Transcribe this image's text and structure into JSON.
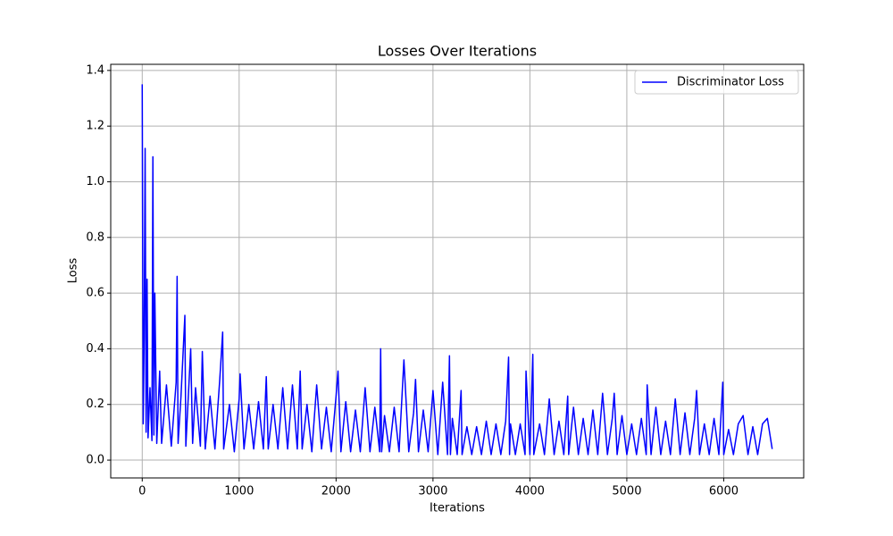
{
  "chart_data": {
    "type": "line",
    "title": "Losses Over Iterations",
    "xlabel": "Iterations",
    "ylabel": "Loss",
    "x": [
      0,
      10,
      20,
      30,
      40,
      50,
      60,
      80,
      100,
      110,
      120,
      130,
      150,
      180,
      200,
      250,
      300,
      350,
      360,
      370,
      400,
      440,
      450,
      500,
      520,
      550,
      600,
      620,
      650,
      700,
      750,
      800,
      830,
      840,
      900,
      950,
      1000,
      1010,
      1050,
      1100,
      1150,
      1200,
      1250,
      1280,
      1300,
      1350,
      1400,
      1450,
      1500,
      1550,
      1600,
      1630,
      1650,
      1700,
      1750,
      1800,
      1850,
      1900,
      1950,
      2000,
      2020,
      2050,
      2100,
      2150,
      2200,
      2250,
      2300,
      2350,
      2400,
      2450,
      2460,
      2470,
      2500,
      2550,
      2600,
      2650,
      2700,
      2750,
      2800,
      2820,
      2850,
      2900,
      2950,
      3000,
      3050,
      3100,
      3150,
      3170,
      3180,
      3200,
      3250,
      3290,
      3300,
      3350,
      3400,
      3450,
      3500,
      3550,
      3600,
      3650,
      3700,
      3750,
      3780,
      3790,
      3800,
      3850,
      3900,
      3950,
      3960,
      4000,
      4030,
      4040,
      4100,
      4150,
      4200,
      4250,
      4300,
      4350,
      4390,
      4400,
      4450,
      4500,
      4550,
      4600,
      4650,
      4700,
      4750,
      4800,
      4850,
      4870,
      4900,
      4950,
      5000,
      5050,
      5100,
      5150,
      5200,
      5210,
      5250,
      5300,
      5350,
      5400,
      5450,
      5500,
      5550,
      5600,
      5650,
      5700,
      5720,
      5750,
      5800,
      5850,
      5900,
      5950,
      5990,
      6000,
      6050,
      6100,
      6150,
      6200,
      6250,
      6300,
      6350,
      6400,
      6450,
      6500
    ],
    "series": [
      {
        "name": "Discriminator Loss",
        "color": "#0000ff",
        "values": [
          1.35,
          0.13,
          0.44,
          1.12,
          0.1,
          0.65,
          0.08,
          0.26,
          0.07,
          1.09,
          0.09,
          0.6,
          0.06,
          0.32,
          0.06,
          0.27,
          0.05,
          0.28,
          0.66,
          0.06,
          0.23,
          0.52,
          0.05,
          0.4,
          0.06,
          0.26,
          0.05,
          0.39,
          0.04,
          0.23,
          0.04,
          0.29,
          0.46,
          0.04,
          0.2,
          0.03,
          0.22,
          0.31,
          0.04,
          0.2,
          0.04,
          0.21,
          0.04,
          0.3,
          0.04,
          0.2,
          0.04,
          0.26,
          0.04,
          0.27,
          0.04,
          0.32,
          0.04,
          0.2,
          0.03,
          0.27,
          0.04,
          0.19,
          0.03,
          0.23,
          0.32,
          0.03,
          0.21,
          0.03,
          0.18,
          0.03,
          0.26,
          0.03,
          0.19,
          0.03,
          0.4,
          0.03,
          0.16,
          0.03,
          0.19,
          0.03,
          0.36,
          0.03,
          0.17,
          0.29,
          0.03,
          0.18,
          0.03,
          0.25,
          0.02,
          0.28,
          0.02,
          0.375,
          0.02,
          0.15,
          0.02,
          0.25,
          0.02,
          0.12,
          0.02,
          0.12,
          0.02,
          0.14,
          0.02,
          0.13,
          0.02,
          0.14,
          0.37,
          0.02,
          0.13,
          0.02,
          0.13,
          0.02,
          0.32,
          0.02,
          0.38,
          0.02,
          0.13,
          0.02,
          0.22,
          0.02,
          0.14,
          0.02,
          0.23,
          0.02,
          0.19,
          0.02,
          0.15,
          0.02,
          0.18,
          0.02,
          0.24,
          0.02,
          0.15,
          0.24,
          0.02,
          0.16,
          0.02,
          0.13,
          0.02,
          0.15,
          0.02,
          0.27,
          0.02,
          0.19,
          0.02,
          0.14,
          0.02,
          0.22,
          0.02,
          0.17,
          0.02,
          0.15,
          0.25,
          0.02,
          0.13,
          0.02,
          0.15,
          0.02,
          0.28,
          0.02,
          0.11,
          0.02,
          0.13,
          0.16,
          0.02,
          0.12,
          0.02,
          0.13,
          0.15,
          0.04
        ]
      }
    ],
    "xlim": [
      -325,
      6825
    ],
    "xticks": [
      0,
      1000,
      2000,
      3000,
      4000,
      5000,
      6000
    ],
    "ylim": [
      -0.064,
      1.422
    ],
    "yticks": [
      {
        "value": 0,
        "label": "0.0"
      },
      0.2,
      0.4,
      0.6,
      0.8,
      {
        "value": 1,
        "label": "1.0"
      },
      1.2,
      1.4
    ],
    "grid": true,
    "legend": "upper right"
  }
}
